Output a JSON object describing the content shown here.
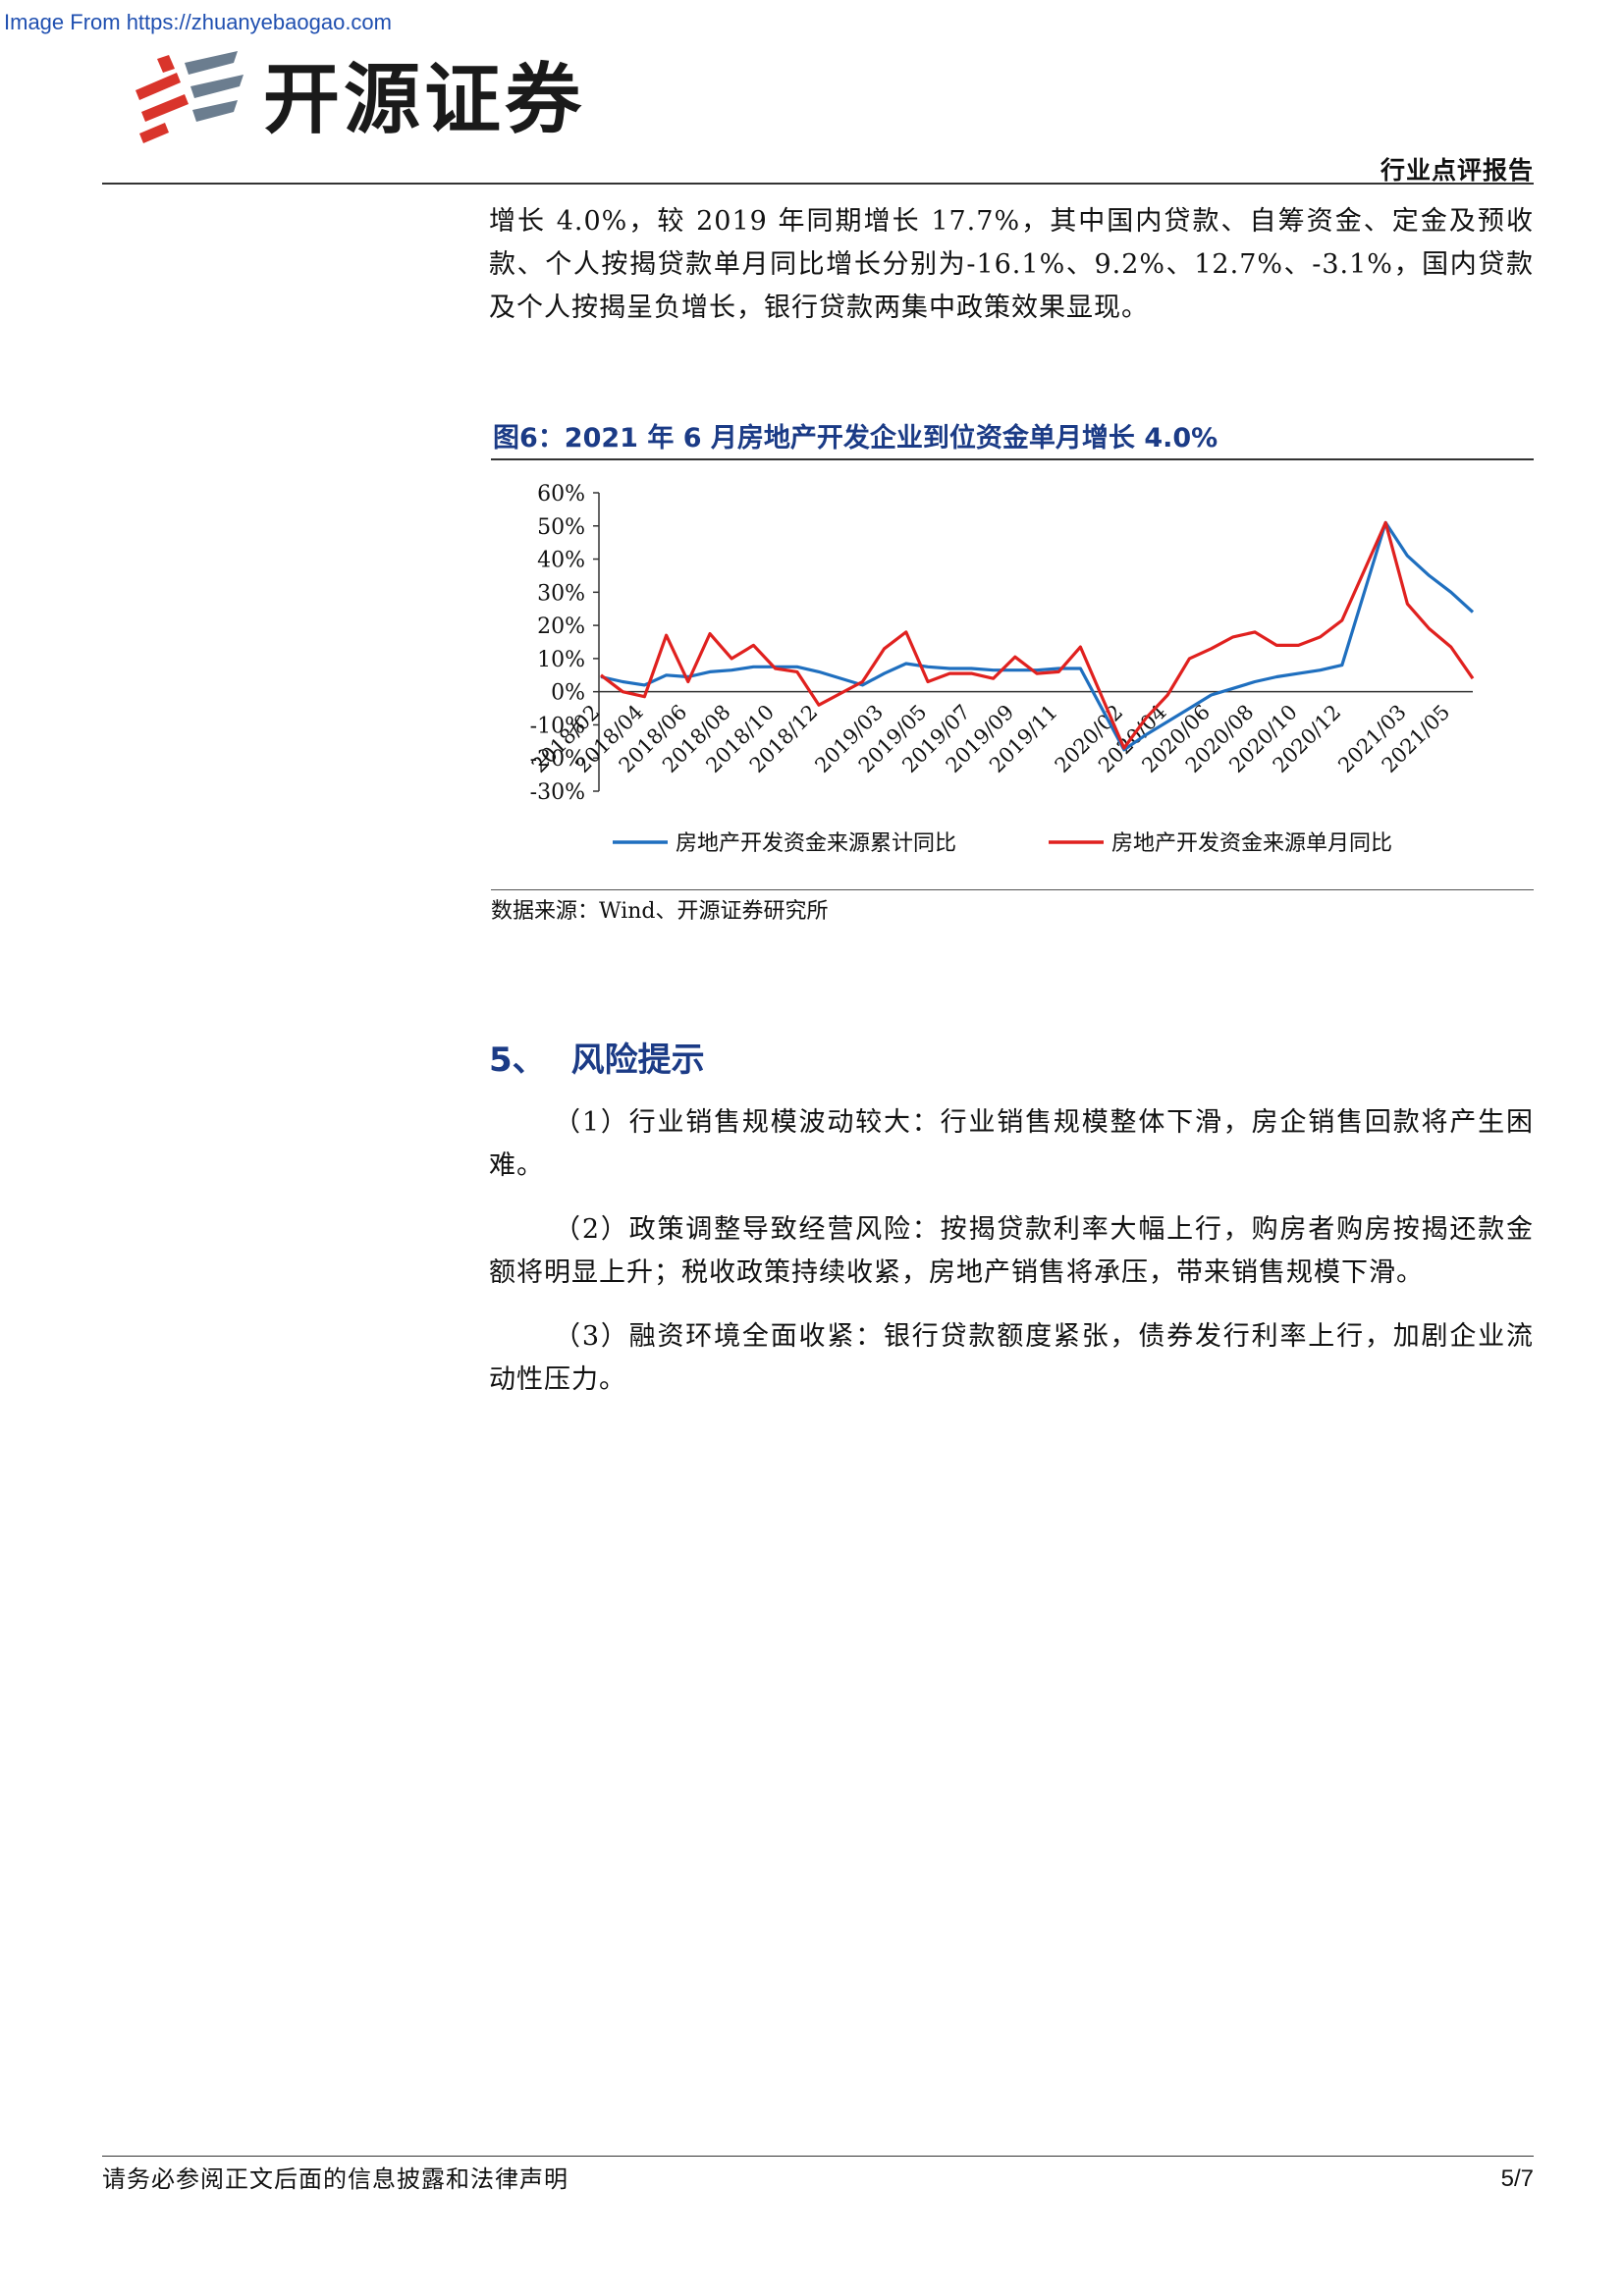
{
  "watermark": "Image From https://zhuanyebaogao.com",
  "header": {
    "company": "开源证券",
    "report_type": "行业点评报告"
  },
  "intro_text": "增长 4.0%，较 2019 年同期增长 17.7%，其中国内贷款、自筹资金、定金及预收款、个人按揭贷款单月同比增长分别为-16.1%、9.2%、12.7%、-3.1%，国内贷款及个人按揭呈负增长，银行贷款两集中政策效果显现。",
  "figure": {
    "title": "图6：2021 年 6 月房地产开发企业到位资金单月增长 4.0%",
    "source": "数据来源：Wind、开源证券研究所"
  },
  "chart_data": {
    "type": "line",
    "title": "",
    "xlabel": "",
    "ylabel": "",
    "ylim": [
      -30,
      60
    ],
    "yticks": [
      "60%",
      "50%",
      "40%",
      "30%",
      "20%",
      "10%",
      "0%",
      "-10%",
      "-20%",
      "-30%"
    ],
    "x": [
      "2018/02",
      "2018/03",
      "2018/04",
      "2018/05",
      "2018/06",
      "2018/07",
      "2018/08",
      "2018/09",
      "2018/10",
      "2018/11",
      "2018/12",
      "2019/01",
      "2019/02",
      "2019/03",
      "2019/04",
      "2019/05",
      "2019/06",
      "2019/07",
      "2019/08",
      "2019/09",
      "2019/10",
      "2019/11",
      "2019/12",
      "2020/01",
      "2020/02",
      "2020/03",
      "2020/04",
      "2020/05",
      "2020/06",
      "2020/07",
      "2020/08",
      "2020/09",
      "2020/10",
      "2020/11",
      "2020/12",
      "2021/01",
      "2021/02",
      "2021/03",
      "2021/04",
      "2021/05",
      "2021/06"
    ],
    "tick_labels": [
      "2018/02",
      "2018/04",
      "2018/06",
      "2018/08",
      "2018/10",
      "2018/12",
      "2019/03",
      "2019/05",
      "2019/07",
      "2019/09",
      "2019/11",
      "2020/02",
      "2020/04",
      "2020/06",
      "2020/08",
      "2020/10",
      "2020/12",
      "2021/03",
      "2021/05"
    ],
    "legend_position": "bottom",
    "series": [
      {
        "name": "房地产开发资金来源累计同比",
        "color": "#1f6fbf",
        "values": [
          4.5,
          3,
          2,
          5,
          4.5,
          6,
          6.5,
          7.5,
          7.5,
          7.5,
          6,
          null,
          2,
          5.5,
          8.5,
          7.5,
          7,
          7,
          6.5,
          6.5,
          6.5,
          7,
          7,
          null,
          -17.5,
          -13,
          -9,
          -5,
          -1,
          1,
          3,
          4.5,
          5.5,
          6.5,
          8,
          null,
          51,
          41,
          35,
          30,
          24
        ]
      },
      {
        "name": "房地产开发资金来源单月同比",
        "color": "#e0211f",
        "values": [
          5,
          0,
          -1.5,
          17,
          3,
          17.5,
          10,
          14,
          7,
          6,
          -4,
          null,
          3,
          13,
          18,
          3,
          5.5,
          5.5,
          4,
          10.5,
          5.5,
          6,
          13.5,
          null,
          -17,
          -8,
          -1,
          10,
          13,
          16.5,
          18,
          14,
          14,
          16.5,
          21.5,
          null,
          51,
          26.5,
          19,
          13.5,
          4
        ]
      }
    ]
  },
  "section": {
    "number": "5、",
    "title": "风险提示"
  },
  "risks": [
    "（1）行业销售规模波动较大：行业销售规模整体下滑，房企销售回款将产生困难。",
    "（2）政策调整导致经营风险：按揭贷款利率大幅上行，购房者购房按揭还款金额将明显上升；税收政策持续收紧，房地产销售将承压，带来销售规模下滑。",
    "（3）融资环境全面收紧：银行贷款额度紧张，债券发行利率上行，加剧企业流动性压力。"
  ],
  "footer": {
    "disclaimer": "请务必参阅正文后面的信息披露和法律声明",
    "page": "5/7"
  }
}
